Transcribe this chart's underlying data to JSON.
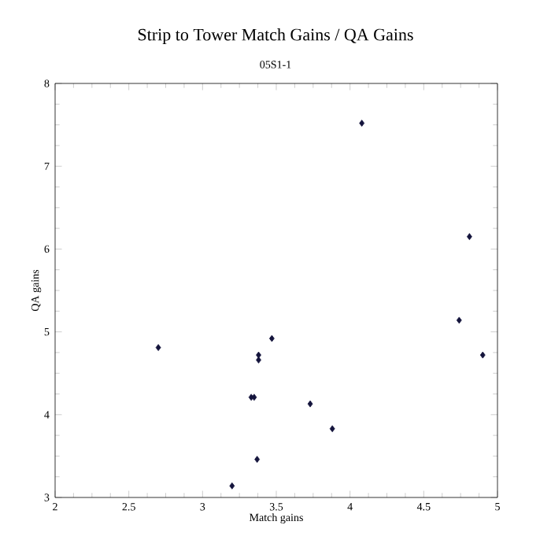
{
  "chart_data": {
    "type": "scatter",
    "title": "Strip to Tower Match Gains / QA Gains",
    "subtitle": "05S1-1",
    "xlabel": "Match gains",
    "ylabel": "QA gains",
    "x": [
      2.7,
      3.2,
      3.37,
      3.33,
      3.35,
      3.38,
      3.38,
      3.47,
      3.73,
      3.88,
      4.08,
      4.74,
      4.81,
      4.9
    ],
    "values": [
      4.81,
      3.14,
      3.46,
      4.21,
      4.21,
      4.72,
      4.66,
      4.92,
      4.13,
      3.83,
      7.52,
      5.14,
      6.15,
      4.72
    ],
    "color": "#14143c",
    "marker": "diamond",
    "grid": false,
    "xlim": [
      2,
      5
    ],
    "ylim": [
      3,
      8
    ],
    "xticks": [
      2,
      2.5,
      3,
      3.5,
      4,
      4.5,
      5
    ],
    "yticks": [
      3,
      4,
      5,
      6,
      7,
      8
    ]
  }
}
